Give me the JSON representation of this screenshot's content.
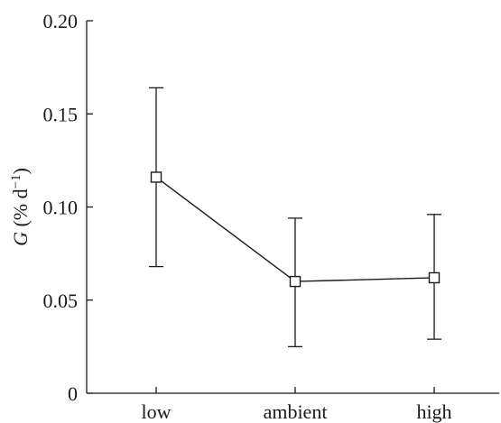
{
  "chart_data": {
    "type": "line",
    "title": "",
    "xlabel": "",
    "ylabel": {
      "symbol": "G",
      "unit_prefix": " (% d",
      "unit_exp": "−1",
      "unit_suffix": ")"
    },
    "categories": [
      "low",
      "ambient",
      "high"
    ],
    "series": [
      {
        "values": [
          0.116,
          0.06,
          0.062
        ],
        "err_low": [
          0.068,
          0.025,
          0.029
        ],
        "err_high": [
          0.164,
          0.094,
          0.096
        ],
        "marker": "open-square"
      }
    ],
    "ylim": [
      0,
      0.2
    ],
    "yticks": [
      {
        "value": 0,
        "label": "0"
      },
      {
        "value": 0.05,
        "label": "0.05"
      },
      {
        "value": 0.1,
        "label": "0.10"
      },
      {
        "value": 0.15,
        "label": "0.15"
      },
      {
        "value": 0.2,
        "label": "0.20"
      }
    ],
    "grid": false,
    "legend": "none"
  }
}
